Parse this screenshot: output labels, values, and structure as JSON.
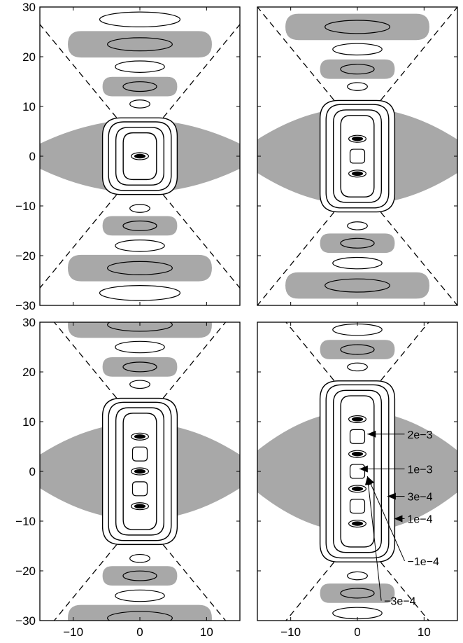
{
  "figure": {
    "panel_count": 4,
    "colors": {
      "negative_region": "#a8a8a8",
      "contour": "#000000",
      "background": "#ffffff"
    }
  },
  "axes": {
    "x_ticks": [
      "−10",
      "0",
      "10"
    ],
    "x_tick_values": [
      -10,
      0,
      10
    ],
    "y_ticks": [
      "30",
      "20",
      "10",
      "0",
      "−10",
      "−20",
      "−30"
    ],
    "y_tick_values": [
      30,
      20,
      10,
      0,
      -10,
      -20,
      -30
    ],
    "xlim": [
      -15,
      15
    ],
    "ylim": [
      -30,
      30
    ]
  },
  "panels": [
    {
      "id": "top-left",
      "inner_half_height": 3.5,
      "dot_positions": [
        0
      ],
      "square_positions": [],
      "lobe_half_width": 9,
      "cone_apex": 0
    },
    {
      "id": "top-right",
      "inner_half_height": 7,
      "dot_positions": [
        3.5,
        -3.5
      ],
      "square_positions": [
        0
      ],
      "lobe_half_width": 12,
      "cone_apex": 0
    },
    {
      "id": "bottom-left",
      "inner_half_height": 10.5,
      "dot_positions": [
        7,
        0,
        -7
      ],
      "square_positions": [
        3.5,
        -3.5
      ],
      "lobe_half_width": 12,
      "cone_apex": 0
    },
    {
      "id": "bottom-right",
      "inner_half_height": 14,
      "dot_positions": [
        10.5,
        3.5,
        -3.5,
        -10.5
      ],
      "square_positions": [
        7,
        0,
        -7
      ],
      "lobe_half_width": 15,
      "cone_apex": 0
    }
  ],
  "annotations": [
    {
      "label": "2e−3",
      "target": [
        1.5,
        7.5
      ],
      "text_at": [
        7.5,
        7.5
      ]
    },
    {
      "label": "1e−3",
      "target": [
        0.3,
        0.5
      ],
      "text_at": [
        7.5,
        0.5
      ]
    },
    {
      "label": "3e−4",
      "target": [
        4.5,
        -5
      ],
      "text_at": [
        7.5,
        -5
      ]
    },
    {
      "label": "1e−4",
      "target": [
        5.5,
        -9.5
      ],
      "text_at": [
        7.5,
        -9.5
      ]
    },
    {
      "label": "−1e−4",
      "target": [
        1.5,
        -1
      ],
      "text_at": [
        7.5,
        -18
      ]
    },
    {
      "label": "−3e−4",
      "target": [
        1.5,
        -1
      ],
      "text_at": [
        4,
        -26
      ]
    }
  ]
}
